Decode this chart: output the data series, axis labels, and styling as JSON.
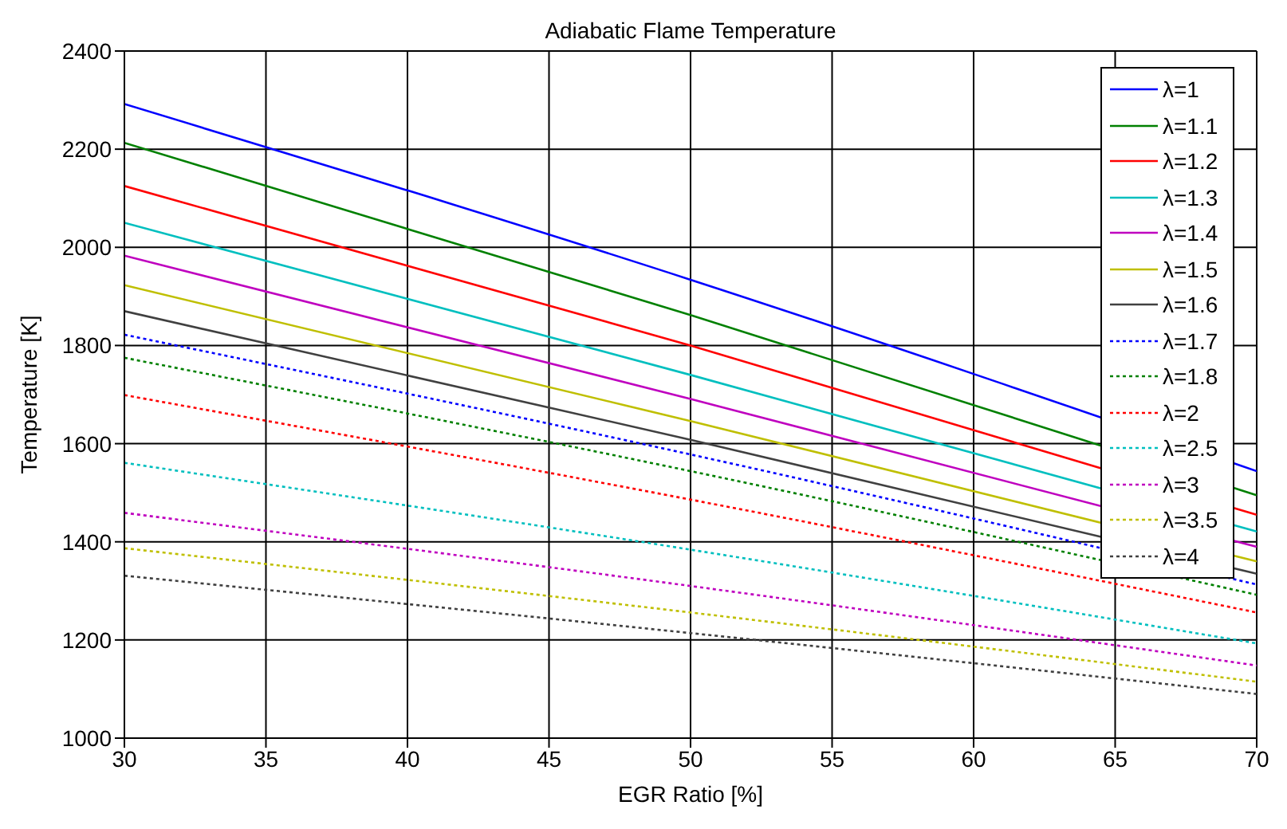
{
  "chart_data": {
    "type": "line",
    "title": "Adiabatic Flame Temperature",
    "xlabel": "EGR Ratio [%]",
    "ylabel": "Temperature [K]",
    "x": [
      30,
      50,
      70
    ],
    "xlim": [
      30,
      70
    ],
    "xticks": [
      30,
      35,
      40,
      45,
      50,
      55,
      60,
      65,
      70
    ],
    "ylim": [
      1000,
      2400
    ],
    "yticks": [
      1000,
      1200,
      1400,
      1600,
      1800,
      2000,
      2200,
      2400
    ],
    "grid": true,
    "legend": "top right",
    "marker": "none",
    "series": [
      {
        "name": "λ=1",
        "color": "#0000ff",
        "line_style": "solid",
        "values": [
          2292,
          1934,
          1544
        ]
      },
      {
        "name": "λ=1.1",
        "color": "#008000",
        "line_style": "solid",
        "values": [
          2213,
          1862,
          1495
        ]
      },
      {
        "name": "λ=1.2",
        "color": "#ff0000",
        "line_style": "solid",
        "values": [
          2125,
          1800,
          1455
        ]
      },
      {
        "name": "λ=1.3",
        "color": "#00bfbf",
        "line_style": "solid",
        "values": [
          2050,
          1740,
          1421
        ]
      },
      {
        "name": "λ=1.4",
        "color": "#bf00bf",
        "line_style": "solid",
        "values": [
          1983,
          1691,
          1390
        ]
      },
      {
        "name": "λ=1.5",
        "color": "#bfbf00",
        "line_style": "solid",
        "values": [
          1923,
          1646,
          1360
        ]
      },
      {
        "name": "λ=1.6",
        "color": "#404040",
        "line_style": "solid",
        "values": [
          1870,
          1608,
          1335
        ]
      },
      {
        "name": "λ=1.7",
        "color": "#0000ff",
        "line_style": "dotted",
        "values": [
          1822,
          1578,
          1313
        ]
      },
      {
        "name": "λ=1.8",
        "color": "#008000",
        "line_style": "dotted",
        "values": [
          1775,
          1544,
          1292
        ]
      },
      {
        "name": "λ=2",
        "color": "#ff0000",
        "line_style": "dotted",
        "values": [
          1699,
          1486,
          1256
        ]
      },
      {
        "name": "λ=2.5",
        "color": "#00bfbf",
        "line_style": "dotted",
        "values": [
          1561,
          1384,
          1193
        ]
      },
      {
        "name": "λ=3",
        "color": "#bf00bf",
        "line_style": "dotted",
        "values": [
          1459,
          1310,
          1148
        ]
      },
      {
        "name": "λ=3.5",
        "color": "#bfbf00",
        "line_style": "dotted",
        "values": [
          1387,
          1256,
          1115
        ]
      },
      {
        "name": "λ=4",
        "color": "#404040",
        "line_style": "dotted",
        "values": [
          1331,
          1214,
          1090
        ]
      }
    ]
  }
}
